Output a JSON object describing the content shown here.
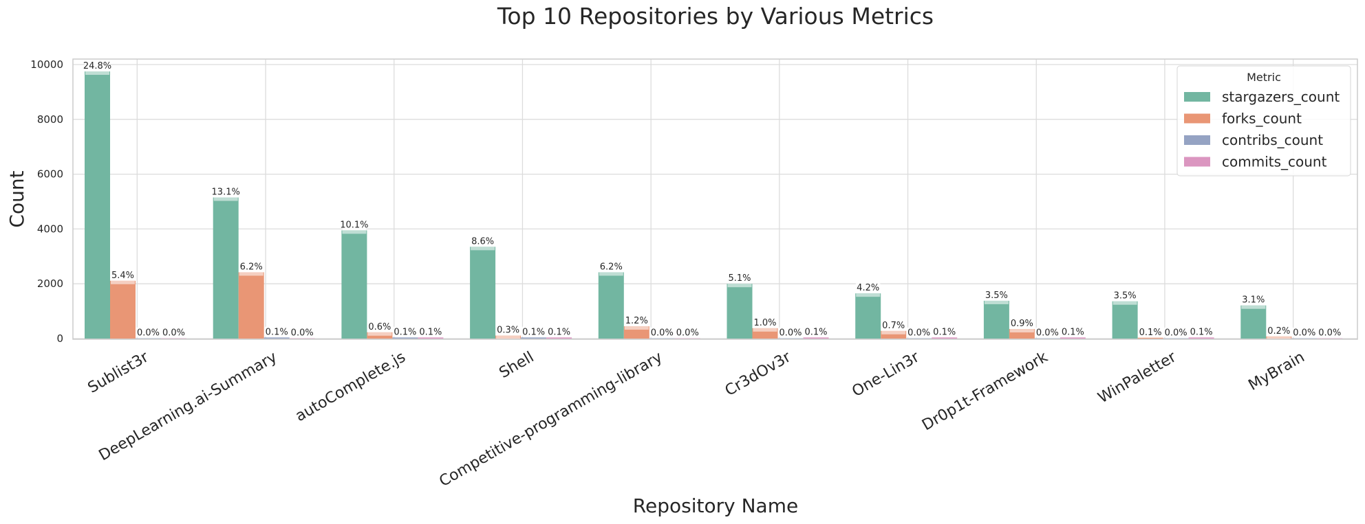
{
  "chart_data": {
    "type": "bar",
    "title": "Top 10 Repositories by Various Metrics",
    "xlabel": "Repository Name",
    "ylabel": "Count",
    "ylim": [
      0,
      10200
    ],
    "yticks": [
      0,
      2000,
      4000,
      6000,
      8000,
      10000
    ],
    "grid": true,
    "legend": {
      "title": "Metric",
      "placement": "top-right"
    },
    "categories": [
      "Sublist3r",
      "DeepLearning.ai-Summary",
      "autoComplete.js",
      "Shell",
      "Competitive-programming-library",
      "Cr3dOv3r",
      "One-Lin3r",
      "Dr0p1t-Framework",
      "WinPaletter",
      "MyBrain"
    ],
    "series": [
      {
        "name": "stargazers_count",
        "color": "#72b6a1",
        "values": [
          9750,
          5150,
          3950,
          3350,
          2420,
          2000,
          1650,
          1380,
          1360,
          1210
        ],
        "labels": [
          "24.8%",
          "13.1%",
          "10.1%",
          "8.6%",
          "6.2%",
          "5.1%",
          "4.2%",
          "3.5%",
          "3.5%",
          "3.1%"
        ]
      },
      {
        "name": "forks_count",
        "color": "#e99675",
        "values": [
          2110,
          2420,
          230,
          110,
          450,
          380,
          280,
          350,
          30,
          80
        ],
        "labels": [
          "5.4%",
          "6.2%",
          "0.6%",
          "0.3%",
          "1.2%",
          "1.0%",
          "0.7%",
          "0.9%",
          "0.1%",
          "0.2%"
        ]
      },
      {
        "name": "contribs_count",
        "color": "#95a3c3",
        "values": [
          10,
          40,
          40,
          40,
          10,
          10,
          10,
          10,
          10,
          10
        ],
        "labels": [
          "0.0%",
          "0.1%",
          "0.1%",
          "0.1%",
          "0.0%",
          "0.0%",
          "0.0%",
          "0.0%",
          "0.0%",
          "0.0%"
        ]
      },
      {
        "name": "commits_count",
        "color": "#db96c0",
        "values": [
          10,
          10,
          40,
          40,
          10,
          40,
          40,
          40,
          40,
          10
        ],
        "labels": [
          "0.0%",
          "0.0%",
          "0.1%",
          "0.1%",
          "0.0%",
          "0.1%",
          "0.1%",
          "0.1%",
          "0.1%",
          "0.0%"
        ]
      }
    ]
  }
}
